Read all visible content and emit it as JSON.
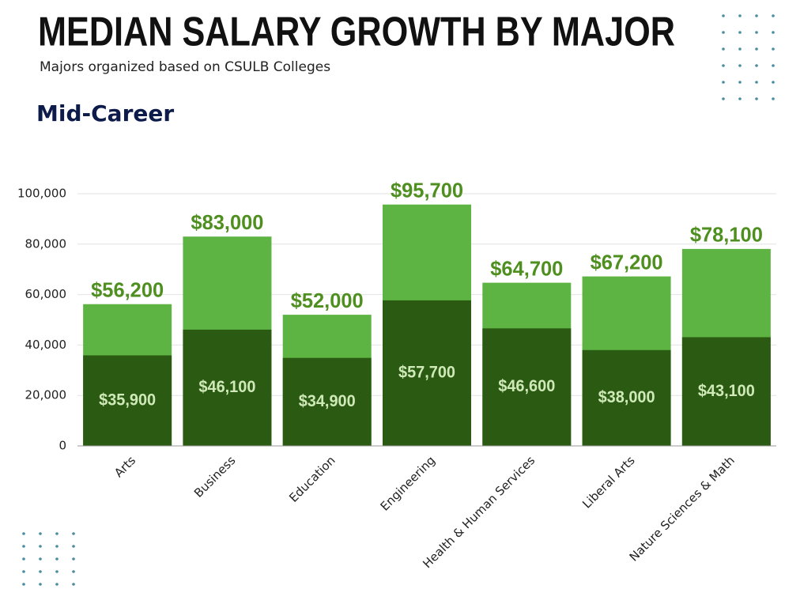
{
  "chart_data": {
    "type": "bar",
    "title": "MEDIAN SALARY GROWTH BY MAJOR",
    "subtitle": "Majors organized based on CSULB Colleges",
    "heading": "Mid-Career",
    "categories": [
      "Arts",
      "Business",
      "Education",
      "Engineering",
      "Health & Human Services",
      "Liberal Arts",
      "Nature Sciences & Math"
    ],
    "series": [
      {
        "color": "#5db443",
        "values": [
          56200,
          83000,
          52000,
          95700,
          64700,
          67200,
          78100
        ],
        "value_labels": [
          "$56,200",
          "$83,000",
          "$52,000",
          "$95,700",
          "$64,700",
          "$67,200",
          "$78,100"
        ]
      },
      {
        "color": "#2b5a12",
        "values": [
          35900,
          46100,
          34900,
          57700,
          46600,
          38000,
          43100
        ],
        "value_labels": [
          "$35,900",
          "$46,100",
          "$34,900",
          "$57,700",
          "$46,600",
          "$38,000",
          "$43,100"
        ]
      }
    ],
    "ylim": [
      0,
      100000
    ],
    "yticks": [
      0,
      {
        "value": 20000,
        "label": "20,000"
      },
      {
        "value": 40000,
        "label": "40,000"
      },
      {
        "value": 60000,
        "label": "60,000"
      },
      {
        "value": 80000,
        "label": "80,000"
      },
      {
        "value": 100000,
        "label": "100,000"
      }
    ],
    "grid": true
  }
}
